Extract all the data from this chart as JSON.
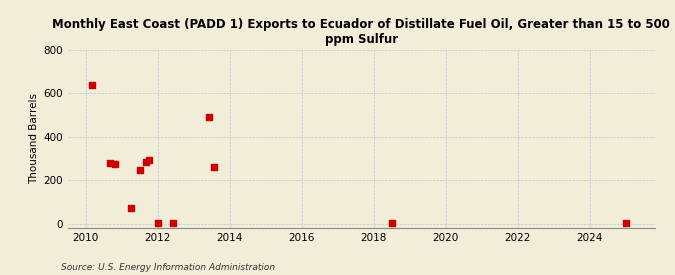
{
  "title": "Monthly East Coast (PADD 1) Exports to Ecuador of Distillate Fuel Oil, Greater than 15 to 500\nppm Sulfur",
  "ylabel": "Thousand Barrels",
  "source": "Source: U.S. Energy Information Administration",
  "background_color": "#f2edd8",
  "plot_bg_color": "#f2edd8",
  "point_color": "#cc0000",
  "xlim": [
    2009.5,
    2025.8
  ],
  "ylim": [
    -20,
    800
  ],
  "yticks": [
    0,
    200,
    400,
    600,
    800
  ],
  "xticks": [
    2010,
    2012,
    2014,
    2016,
    2018,
    2020,
    2022,
    2024
  ],
  "data_x": [
    2010.17,
    2010.67,
    2010.83,
    2011.25,
    2011.5,
    2011.67,
    2011.75,
    2012.0,
    2012.42,
    2013.42,
    2013.58,
    2018.5,
    2025.0
  ],
  "data_y": [
    635,
    280,
    275,
    75,
    245,
    285,
    295,
    5,
    5,
    490,
    260,
    5,
    5
  ],
  "title_fontsize": 8.5,
  "label_fontsize": 7.5,
  "tick_fontsize": 7.5,
  "source_fontsize": 6.5
}
